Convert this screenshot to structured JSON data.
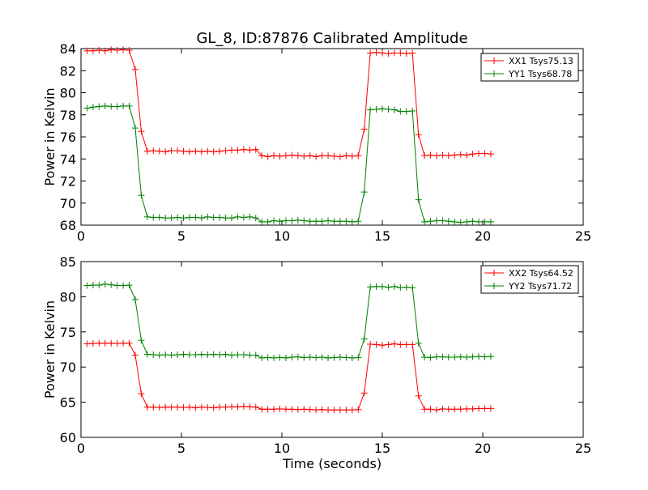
{
  "title": "GL_8, ID:87876 Calibrated Amplitude",
  "chart_data": [
    {
      "type": "line",
      "title": "GL_8, ID:87876 Calibrated Amplitude",
      "xlabel": "",
      "ylabel": "Power in Kelvin",
      "xlim": [
        0,
        25
      ],
      "ylim": [
        68,
        84
      ],
      "xticks": [
        0,
        5,
        10,
        15,
        20,
        25
      ],
      "yticks": [
        68,
        70,
        72,
        74,
        76,
        78,
        80,
        82,
        84
      ],
      "legend_position": "top-right",
      "grid": false,
      "marker": "+",
      "x": [
        0.3,
        0.6,
        0.9,
        1.2,
        1.5,
        1.8,
        2.1,
        2.4,
        2.7,
        3.0,
        3.3,
        3.6,
        3.9,
        4.2,
        4.5,
        4.8,
        5.1,
        5.4,
        5.7,
        6.0,
        6.3,
        6.6,
        6.9,
        7.2,
        7.5,
        7.8,
        8.1,
        8.4,
        8.7,
        9.0,
        9.3,
        9.6,
        9.9,
        10.2,
        10.5,
        10.8,
        11.1,
        11.4,
        11.7,
        12.0,
        12.3,
        12.6,
        12.9,
        13.2,
        13.5,
        13.8,
        14.1,
        14.4,
        14.7,
        15.0,
        15.3,
        15.6,
        15.9,
        16.2,
        16.5,
        16.8,
        17.1,
        17.4,
        17.7,
        18.0,
        18.3,
        18.6,
        18.9,
        19.2,
        19.5,
        19.8,
        20.1,
        20.4
      ],
      "series": [
        {
          "name": "XX1 Tsys75.13",
          "color": "#ff0000",
          "values": [
            83.8,
            83.8,
            83.85,
            83.8,
            83.9,
            83.85,
            83.9,
            83.85,
            82.1,
            76.5,
            74.7,
            74.75,
            74.7,
            74.65,
            74.75,
            74.75,
            74.7,
            74.65,
            74.7,
            74.65,
            74.7,
            74.65,
            74.7,
            74.75,
            74.8,
            74.8,
            74.85,
            74.8,
            74.85,
            74.3,
            74.2,
            74.3,
            74.25,
            74.3,
            74.35,
            74.3,
            74.25,
            74.3,
            74.2,
            74.3,
            74.3,
            74.25,
            74.2,
            74.3,
            74.25,
            74.3,
            76.7,
            83.6,
            83.65,
            83.6,
            83.55,
            83.6,
            83.6,
            83.55,
            83.6,
            76.2,
            74.3,
            74.35,
            74.3,
            74.35,
            74.3,
            74.35,
            74.4,
            74.35,
            74.45,
            74.5,
            74.5,
            74.45
          ]
        },
        {
          "name": "YY1 Tsys68.78",
          "color": "#008000",
          "values": [
            78.6,
            78.7,
            78.75,
            78.8,
            78.75,
            78.75,
            78.8,
            78.8,
            76.8,
            70.7,
            68.75,
            68.7,
            68.7,
            68.65,
            68.65,
            68.7,
            68.65,
            68.7,
            68.7,
            68.65,
            68.75,
            68.7,
            68.7,
            68.65,
            68.65,
            68.75,
            68.7,
            68.75,
            68.65,
            68.3,
            68.3,
            68.4,
            68.35,
            68.4,
            68.4,
            68.45,
            68.4,
            68.35,
            68.35,
            68.35,
            68.4,
            68.35,
            68.35,
            68.35,
            68.3,
            68.35,
            71.0,
            78.45,
            78.5,
            78.55,
            78.5,
            78.45,
            78.3,
            78.3,
            78.35,
            70.3,
            68.3,
            68.35,
            68.4,
            68.4,
            68.35,
            68.3,
            68.25,
            68.3,
            68.35,
            68.3,
            68.3,
            68.3
          ]
        }
      ]
    },
    {
      "type": "line",
      "title": "",
      "xlabel": "Time (seconds)",
      "ylabel": "Power in Kelvin",
      "xlim": [
        0,
        25
      ],
      "ylim": [
        60,
        85
      ],
      "xticks": [
        0,
        5,
        10,
        15,
        20,
        25
      ],
      "yticks": [
        60,
        65,
        70,
        75,
        80,
        85
      ],
      "legend_position": "top-right",
      "grid": false,
      "marker": "+",
      "x": [
        0.3,
        0.6,
        0.9,
        1.2,
        1.5,
        1.8,
        2.1,
        2.4,
        2.7,
        3.0,
        3.3,
        3.6,
        3.9,
        4.2,
        4.5,
        4.8,
        5.1,
        5.4,
        5.7,
        6.0,
        6.3,
        6.6,
        6.9,
        7.2,
        7.5,
        7.8,
        8.1,
        8.4,
        8.7,
        9.0,
        9.3,
        9.6,
        9.9,
        10.2,
        10.5,
        10.8,
        11.1,
        11.4,
        11.7,
        12.0,
        12.3,
        12.6,
        12.9,
        13.2,
        13.5,
        13.8,
        14.1,
        14.4,
        14.7,
        15.0,
        15.3,
        15.6,
        15.9,
        16.2,
        16.5,
        16.8,
        17.1,
        17.4,
        17.7,
        18.0,
        18.3,
        18.6,
        18.9,
        19.2,
        19.5,
        19.8,
        20.1,
        20.4
      ],
      "series": [
        {
          "name": "XX2 Tsys64.52",
          "color": "#ff0000",
          "values": [
            73.3,
            73.35,
            73.4,
            73.4,
            73.4,
            73.35,
            73.4,
            73.4,
            71.7,
            66.2,
            64.3,
            64.3,
            64.25,
            64.3,
            64.3,
            64.3,
            64.25,
            64.3,
            64.2,
            64.3,
            64.25,
            64.2,
            64.3,
            64.3,
            64.35,
            64.35,
            64.4,
            64.35,
            64.3,
            64.0,
            64.0,
            64.0,
            64.05,
            64.0,
            64.0,
            63.95,
            64.0,
            63.95,
            63.9,
            63.95,
            63.9,
            63.9,
            63.9,
            63.9,
            63.9,
            63.95,
            66.3,
            73.25,
            73.2,
            73.1,
            73.2,
            73.3,
            73.2,
            73.2,
            73.2,
            65.9,
            64.0,
            64.0,
            63.9,
            64.05,
            64.0,
            64.0,
            64.0,
            64.05,
            64.05,
            64.1,
            64.1,
            64.1
          ]
        },
        {
          "name": "YY2 Tsys71.72",
          "color": "#008000",
          "values": [
            81.6,
            81.65,
            81.65,
            81.8,
            81.7,
            81.6,
            81.6,
            81.65,
            79.6,
            73.8,
            71.8,
            71.75,
            71.7,
            71.75,
            71.7,
            71.75,
            71.8,
            71.75,
            71.75,
            71.8,
            71.75,
            71.8,
            71.75,
            71.8,
            71.7,
            71.75,
            71.75,
            71.7,
            71.7,
            71.3,
            71.35,
            71.3,
            71.35,
            71.3,
            71.4,
            71.45,
            71.35,
            71.4,
            71.35,
            71.4,
            71.3,
            71.35,
            71.4,
            71.35,
            71.3,
            71.35,
            74.0,
            81.4,
            81.45,
            81.45,
            81.35,
            81.45,
            81.3,
            81.35,
            81.3,
            73.4,
            71.4,
            71.35,
            71.45,
            71.45,
            71.4,
            71.4,
            71.45,
            71.4,
            71.45,
            71.5,
            71.45,
            71.5
          ]
        }
      ]
    }
  ]
}
